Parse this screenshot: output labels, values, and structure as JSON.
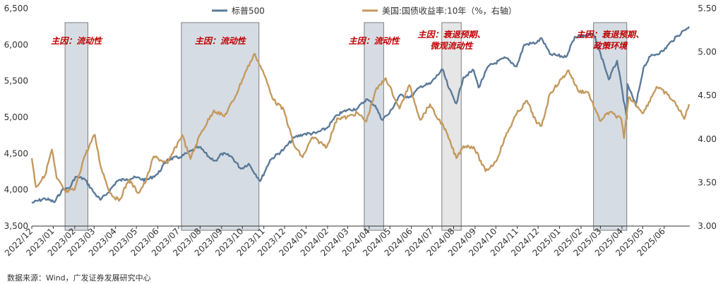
{
  "chart_data": {
    "type": "line",
    "legend_position": "top",
    "grid": false,
    "ylim_left": [
      3500,
      6500
    ],
    "ylim_right": [
      3.0,
      5.5
    ],
    "yticks_left": [
      "3,500",
      "4,000",
      "4,500",
      "5,000",
      "5,500",
      "6,000",
      "6,500"
    ],
    "yticks_right": [
      "3.00",
      "3.50",
      "4.00",
      "4.50",
      "5.00",
      "5.50"
    ],
    "xticks": [
      "2022/12",
      "2023/01",
      "2023/02",
      "2023/03",
      "2023/04",
      "2023/05",
      "2023/06",
      "2023/07",
      "2023/08",
      "2023/09",
      "2023/10",
      "2023/11",
      "2023/12",
      "2024/01",
      "2024/02",
      "2024/03",
      "2024/04",
      "2024/05",
      "2024/06",
      "2024/07",
      "2024/08",
      "2024/09",
      "2024/10",
      "2024/11",
      "2024/12",
      "2025/01",
      "2025/02",
      "2025/03",
      "2025/04",
      "2025/05",
      "2025/06"
    ],
    "series": [
      {
        "name": "标普500",
        "axis": "left",
        "color": "#5b7a99",
        "points": [
          [
            "2022/12/01",
            3820
          ],
          [
            "2022/12/20",
            3880
          ],
          [
            "2023/01/03",
            3830
          ],
          [
            "2023/01/13",
            3990
          ],
          [
            "2023/01/25",
            4030
          ],
          [
            "2023/02/02",
            4180
          ],
          [
            "2023/02/15",
            4150
          ],
          [
            "2023/03/01",
            3960
          ],
          [
            "2023/03/10",
            3860
          ],
          [
            "2023/03/20",
            3950
          ],
          [
            "2023/04/03",
            4120
          ],
          [
            "2023/04/17",
            4150
          ],
          [
            "2023/05/01",
            4170
          ],
          [
            "2023/05/15",
            4130
          ],
          [
            "2023/06/01",
            4220
          ],
          [
            "2023/06/15",
            4420
          ],
          [
            "2023/07/03",
            4450
          ],
          [
            "2023/07/20",
            4540
          ],
          [
            "2023/07/31",
            4590
          ],
          [
            "2023/08/15",
            4440
          ],
          [
            "2023/08/25",
            4400
          ],
          [
            "2023/09/01",
            4500
          ],
          [
            "2023/09/15",
            4460
          ],
          [
            "2023/09/29",
            4290
          ],
          [
            "2023/10/10",
            4360
          ],
          [
            "2023/10/27",
            4120
          ],
          [
            "2023/11/10",
            4410
          ],
          [
            "2023/11/30",
            4560
          ],
          [
            "2023/12/15",
            4720
          ],
          [
            "2023/12/29",
            4770
          ],
          [
            "2024/01/15",
            4780
          ],
          [
            "2024/01/31",
            4850
          ],
          [
            "2024/02/15",
            5030
          ],
          [
            "2024/02/29",
            5100
          ],
          [
            "2024/03/15",
            5120
          ],
          [
            "2024/03/28",
            5250
          ],
          [
            "2024/04/10",
            5160
          ],
          [
            "2024/04/19",
            4970
          ],
          [
            "2024/04/30",
            5050
          ],
          [
            "2024/05/15",
            5300
          ],
          [
            "2024/05/31",
            5280
          ],
          [
            "2024/06/15",
            5430
          ],
          [
            "2024/06/28",
            5460
          ],
          [
            "2024/07/16",
            5660
          ],
          [
            "2024/07/25",
            5400
          ],
          [
            "2024/08/05",
            5190
          ],
          [
            "2024/08/15",
            5550
          ],
          [
            "2024/08/30",
            5650
          ],
          [
            "2024/09/06",
            5410
          ],
          [
            "2024/09/20",
            5700
          ],
          [
            "2024/10/15",
            5820
          ],
          [
            "2024/10/31",
            5700
          ],
          [
            "2024/11/11",
            6000
          ],
          [
            "2024/11/29",
            6030
          ],
          [
            "2024/12/06",
            6090
          ],
          [
            "2024/12/18",
            5870
          ],
          [
            "2025/01/10",
            5830
          ],
          [
            "2025/01/23",
            6110
          ],
          [
            "2025/02/19",
            6140
          ],
          [
            "2025/03/06",
            5740
          ],
          [
            "2025/03/13",
            5520
          ],
          [
            "2025/03/25",
            5780
          ],
          [
            "2025/04/08",
            4980
          ],
          [
            "2025/04/09",
            5460
          ],
          [
            "2025/04/21",
            5160
          ],
          [
            "2025/05/02",
            5680
          ],
          [
            "2025/05/12",
            5840
          ],
          [
            "2025/05/30",
            5910
          ],
          [
            "2025/06/12",
            6050
          ],
          [
            "2025/06/30",
            6200
          ],
          [
            "2025/07/07",
            6250
          ]
        ]
      },
      {
        "name": "美国:国债收益率:10年（%，右轴）",
        "axis": "right",
        "color": "#c49a5f",
        "points": [
          [
            "2022/12/01",
            3.78
          ],
          [
            "2022/12/07",
            3.45
          ],
          [
            "2022/12/20",
            3.58
          ],
          [
            "2022/12/30",
            3.88
          ],
          [
            "2023/01/06",
            3.55
          ],
          [
            "2023/01/19",
            3.39
          ],
          [
            "2023/02/01",
            3.42
          ],
          [
            "2023/02/15",
            3.8
          ],
          [
            "2023/03/02",
            4.05
          ],
          [
            "2023/03/10",
            3.7
          ],
          [
            "2023/03/24",
            3.38
          ],
          [
            "2023/04/06",
            3.29
          ],
          [
            "2023/04/20",
            3.53
          ],
          [
            "2023/05/04",
            3.38
          ],
          [
            "2023/05/15",
            3.52
          ],
          [
            "2023/05/26",
            3.8
          ],
          [
            "2023/06/15",
            3.72
          ],
          [
            "2023/07/06",
            4.05
          ],
          [
            "2023/07/18",
            3.77
          ],
          [
            "2023/08/01",
            4.05
          ],
          [
            "2023/08/21",
            4.33
          ],
          [
            "2023/09/05",
            4.26
          ],
          [
            "2023/09/21",
            4.49
          ],
          [
            "2023/10/06",
            4.78
          ],
          [
            "2023/10/19",
            4.98
          ],
          [
            "2023/11/01",
            4.75
          ],
          [
            "2023/11/15",
            4.45
          ],
          [
            "2023/11/30",
            4.33
          ],
          [
            "2023/12/15",
            3.92
          ],
          [
            "2023/12/27",
            3.79
          ],
          [
            "2024/01/10",
            4.02
          ],
          [
            "2024/01/31",
            3.91
          ],
          [
            "2024/02/15",
            4.24
          ],
          [
            "2024/02/29",
            4.25
          ],
          [
            "2024/03/15",
            4.3
          ],
          [
            "2024/03/28",
            4.2
          ],
          [
            "2024/04/10",
            4.55
          ],
          [
            "2024/04/25",
            4.7
          ],
          [
            "2024/05/15",
            4.35
          ],
          [
            "2024/05/29",
            4.62
          ],
          [
            "2024/06/14",
            4.22
          ],
          [
            "2024/06/28",
            4.4
          ],
          [
            "2024/07/05",
            4.28
          ],
          [
            "2024/07/17",
            4.16
          ],
          [
            "2024/08/05",
            3.78
          ],
          [
            "2024/08/15",
            3.92
          ],
          [
            "2024/08/30",
            3.91
          ],
          [
            "2024/09/16",
            3.63
          ],
          [
            "2024/10/01",
            3.74
          ],
          [
            "2024/10/15",
            4.03
          ],
          [
            "2024/10/31",
            4.29
          ],
          [
            "2024/11/15",
            4.44
          ],
          [
            "2024/11/29",
            4.18
          ],
          [
            "2024/12/06",
            4.15
          ],
          [
            "2024/12/18",
            4.52
          ],
          [
            "2025/01/14",
            4.79
          ],
          [
            "2025/01/28",
            4.55
          ],
          [
            "2025/02/11",
            4.54
          ],
          [
            "2025/02/28",
            4.21
          ],
          [
            "2025/03/14",
            4.31
          ],
          [
            "2025/03/31",
            4.23
          ],
          [
            "2025/04/04",
            4.01
          ],
          [
            "2025/04/11",
            4.48
          ],
          [
            "2025/04/21",
            4.4
          ],
          [
            "2025/05/02",
            4.3
          ],
          [
            "2025/05/21",
            4.6
          ],
          [
            "2025/06/06",
            4.51
          ],
          [
            "2025/06/20",
            4.38
          ],
          [
            "2025/06/30",
            4.23
          ],
          [
            "2025/07/07",
            4.4
          ]
        ]
      }
    ],
    "shaded_periods": [
      {
        "start": "2023/01/18",
        "end": "2023/02/20",
        "label_lines": [
          "主因：流动性"
        ]
      },
      {
        "start": "2023/07/05",
        "end": "2023/10/25",
        "label_lines": [
          "主因：流动性"
        ]
      },
      {
        "start": "2024/03/25",
        "end": "2024/04/22",
        "label_lines": [
          "主因：流动性"
        ]
      },
      {
        "start": "2024/07/15",
        "end": "2024/08/12",
        "label_lines": [
          "主因：衰退预期、",
          "微观流动性"
        ]
      },
      {
        "start": "2025/02/19",
        "end": "2025/04/08",
        "label_lines": [
          "主因：衰退预期、",
          "政策环境"
        ]
      }
    ]
  },
  "source_text": "数据来源：Wind，广发证券发展研究中心"
}
